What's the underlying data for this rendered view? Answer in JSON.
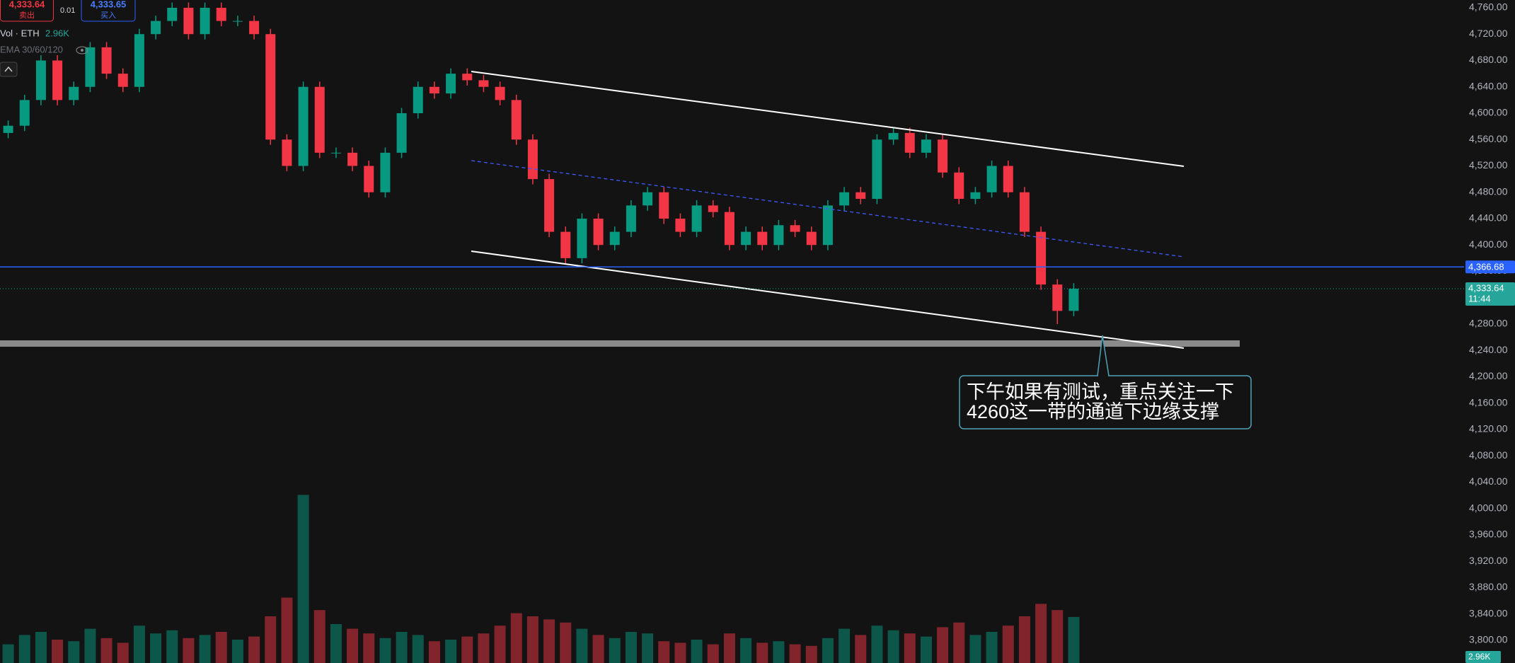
{
  "chart_data": {
    "type": "candlestick",
    "ylim": [
      3765.6,
      4771.8
    ],
    "yticks": [
      {
        "value": 4760,
        "label": "4,760.00"
      },
      {
        "value": 4720,
        "label": "4,720.00"
      },
      {
        "value": 4680,
        "label": "4,680.00"
      },
      {
        "value": 4640,
        "label": "4,640.00"
      },
      {
        "value": 4600,
        "label": "4,600.00"
      },
      {
        "value": 4560,
        "label": "4,560.00"
      },
      {
        "value": 4520,
        "label": "4,520.00"
      },
      {
        "value": 4480,
        "label": "4,480.00"
      },
      {
        "value": 4440,
        "label": "4,440.00"
      },
      {
        "value": 4400,
        "label": "4,400.00"
      },
      {
        "value": 4360,
        "label": "4,360.00"
      },
      {
        "value": 4320,
        "label": "4,320.00"
      },
      {
        "value": 4280,
        "label": "4,280.00"
      },
      {
        "value": 4240,
        "label": "4,240.00"
      },
      {
        "value": 4200,
        "label": "4,200.00"
      },
      {
        "value": 4160,
        "label": "4,160.00"
      },
      {
        "value": 4120,
        "label": "4,120.00"
      },
      {
        "value": 4080,
        "label": "4,080.00"
      },
      {
        "value": 4040,
        "label": "4,040.00"
      },
      {
        "value": 4000,
        "label": "4,000.00"
      },
      {
        "value": 3960,
        "label": "3,960.00"
      },
      {
        "value": 3920,
        "label": "3,920.00"
      },
      {
        "value": 3880,
        "label": "3,880.00"
      },
      {
        "value": 3840,
        "label": "3,840.00"
      },
      {
        "value": 3800,
        "label": "3,800.00"
      }
    ],
    "grid": false,
    "up_color": "#089981",
    "down_color": "#f23645",
    "open": [
      4570,
      4581,
      4620,
      4680,
      4620,
      4640,
      4700,
      4660,
      4640,
      4720,
      4740,
      4760,
      4720,
      4760,
      4740,
      4740,
      4720,
      4560,
      4520,
      4640,
      4540,
      4540,
      4520,
      4480,
      4540,
      4600,
      4640,
      4630,
      4660,
      4650,
      4640,
      4620,
      4560,
      4500,
      4420,
      4380,
      4440,
      4400,
      4420,
      4460,
      4480,
      4440,
      4420,
      4460,
      4450,
      4400,
      4420,
      4400,
      4430,
      4420,
      4400,
      4460,
      4480,
      4470,
      4560,
      4570,
      4540,
      4560,
      4510,
      4470,
      4480,
      4520,
      4480,
      4420,
      4340,
      4300
    ],
    "high": [
      4589,
      4628,
      4688,
      4688,
      4648,
      4708,
      4708,
      4668,
      4728,
      4748,
      4768,
      4768,
      4768,
      4768,
      4748,
      4748,
      4728,
      4568,
      4648,
      4648,
      4548,
      4548,
      4528,
      4548,
      4608,
      4648,
      4648,
      4668,
      4668,
      4658,
      4648,
      4628,
      4568,
      4508,
      4428,
      4448,
      4448,
      4428,
      4468,
      4488,
      4488,
      4448,
      4468,
      4468,
      4458,
      4428,
      4428,
      4438,
      4438,
      4428,
      4468,
      4488,
      4488,
      4568,
      4578,
      4578,
      4568,
      4568,
      4518,
      4488,
      4528,
      4528,
      4488,
      4428,
      4348,
      4342
    ],
    "low": [
      4562,
      4573,
      4612,
      4612,
      4612,
      4632,
      4652,
      4632,
      4632,
      4712,
      4732,
      4712,
      4712,
      4732,
      4732,
      4712,
      4552,
      4512,
      4512,
      4532,
      4532,
      4512,
      4472,
      4472,
      4532,
      4592,
      4622,
      4622,
      4642,
      4632,
      4612,
      4552,
      4492,
      4412,
      4372,
      4372,
      4392,
      4392,
      4412,
      4452,
      4432,
      4412,
      4412,
      4442,
      4392,
      4392,
      4392,
      4392,
      4412,
      4392,
      4392,
      4452,
      4462,
      4462,
      4552,
      4532,
      4532,
      4502,
      4462,
      4462,
      4472,
      4472,
      4412,
      4332,
      4280,
      4292
    ],
    "close": [
      4581,
      4620,
      4680,
      4620,
      4640,
      4700,
      4660,
      4640,
      4720,
      4740,
      4760,
      4720,
      4760,
      4740,
      4740,
      4720,
      4560,
      4520,
      4640,
      4540,
      4540,
      4520,
      4480,
      4540,
      4600,
      4640,
      4630,
      4660,
      4650,
      4640,
      4620,
      4560,
      4500,
      4420,
      4380,
      4440,
      4400,
      4420,
      4460,
      4480,
      4440,
      4420,
      4460,
      4450,
      4400,
      4420,
      4400,
      4430,
      4420,
      4400,
      4460,
      4480,
      4470,
      4560,
      4570,
      4540,
      4560,
      4510,
      4470,
      4480,
      4520,
      4480,
      4420,
      4340,
      4300,
      4333.64
    ],
    "volume": {
      "name": "Vol · ETH",
      "label": "2.96K",
      "values": [
        1.2,
        1.8,
        2.0,
        1.5,
        1.4,
        2.2,
        1.6,
        1.3,
        2.4,
        1.9,
        2.1,
        1.6,
        1.8,
        2.0,
        1.5,
        1.7,
        3.0,
        4.2,
        10.8,
        3.4,
        2.5,
        2.2,
        1.9,
        1.6,
        2.0,
        1.8,
        1.4,
        1.5,
        1.7,
        1.9,
        2.4,
        3.2,
        3.0,
        2.8,
        2.6,
        2.2,
        1.8,
        1.6,
        2.0,
        1.9,
        1.4,
        1.3,
        1.5,
        1.2,
        1.9,
        1.6,
        1.3,
        1.4,
        1.2,
        1.1,
        1.6,
        2.2,
        1.8,
        2.4,
        2.1,
        1.9,
        1.7,
        2.3,
        2.6,
        1.8,
        2.0,
        2.4,
        3.0,
        3.8,
        3.4,
        2.96
      ]
    },
    "price_line": {
      "value": 4366.68,
      "label": "4,366.68",
      "color": "#2962ff"
    },
    "last_price": {
      "value": 4333.64,
      "label": "4,333.64",
      "countdown": "11:44"
    },
    "indicator": "EMA 30/60/120",
    "annotation": [
      "下午如果有测试，重点关注一下",
      "4260这一带的通道下边缘支撑"
    ]
  },
  "order_panel": {
    "sell": {
      "price": "4,333.64",
      "label": "卖出"
    },
    "spread": "0.01",
    "buy": {
      "price": "4,333.65",
      "label": "买入"
    }
  }
}
